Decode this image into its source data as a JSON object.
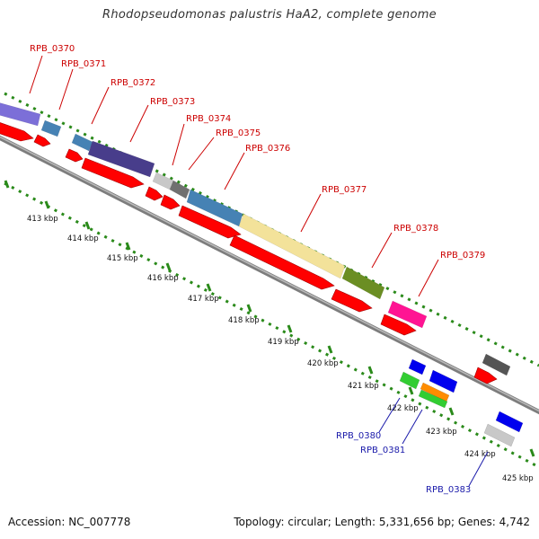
{
  "title": "Rhodopseudomonas palustris HaA2, complete genome",
  "accession": "Accession: NC_007778",
  "summary": "Topology: circular; Length: 5,331,656 bp; Genes: 4,742",
  "colors": {
    "backbone": "#8a8a8a",
    "cds_forward": "#ff0000",
    "cds_reverse": "#1010ee",
    "tick": "#2a8a1a",
    "label_forward": "#cc0000",
    "label_reverse": "#1a1aaa"
  },
  "scale_labels": [
    "413 kbp",
    "414 kbp",
    "415 kbp",
    "416 kbp",
    "417 kbp",
    "418 kbp",
    "419 kbp",
    "420 kbp",
    "421 kbp",
    "422 kbp",
    "423 kbp",
    "424 kbp",
    "425 kbp"
  ],
  "forward_labels": [
    "RPB_0370",
    "RPB_0371",
    "RPB_0372",
    "RPB_0373",
    "RPB_0374",
    "RPB_0375",
    "RPB_0376",
    "RPB_0377",
    "RPB_0378",
    "RPB_0379"
  ],
  "reverse_labels": [
    "RPB_0380",
    "RPB_0381",
    "RPB_0383"
  ]
}
